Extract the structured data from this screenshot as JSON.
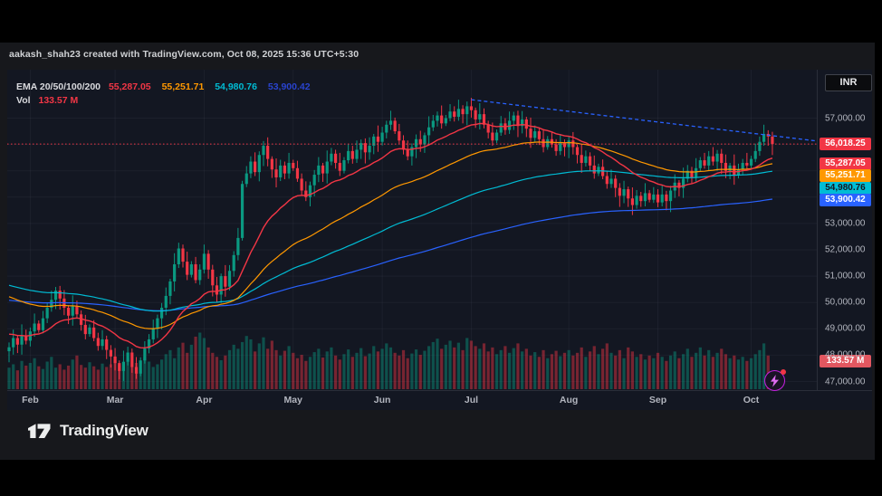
{
  "attribution": {
    "text": "aakash_shah23 created with TradingView.com, Oct 08, 2025 15:36 UTC+5:30"
  },
  "toolbar": {
    "currency_label": "INR"
  },
  "legend": {
    "indicator_label": "EMA 20/50/100/200",
    "ema_values": [
      {
        "name": "ema20",
        "value": "55,287.05",
        "color": "#f23645"
      },
      {
        "name": "ema50",
        "value": "55,251.71",
        "color": "#ff9800"
      },
      {
        "name": "ema100",
        "value": "54,980.76",
        "color": "#00bcd4"
      },
      {
        "name": "ema200",
        "value": "53,900.42",
        "color": "#2943ce"
      }
    ],
    "vol_label": "Vol",
    "vol_value": "133.57 M",
    "vol_color": "#f23645"
  },
  "price_scale": {
    "ticks": [
      {
        "label": "57,000.00",
        "price": 57000
      },
      {
        "label": "53,000.00",
        "price": 53000
      },
      {
        "label": "52,000.00",
        "price": 52000
      },
      {
        "label": "51,000.00",
        "price": 51000
      },
      {
        "label": "50,000.00",
        "price": 50000
      },
      {
        "label": "49,000.00",
        "price": 49000
      },
      {
        "label": "48,000.00",
        "price": 48000
      },
      {
        "label": "47,000.00",
        "price": 47000
      }
    ],
    "price_badge": {
      "label": "56,018.25",
      "color": "#f23645"
    },
    "ema_badges": [
      {
        "label": "55,287.05",
        "color": "#f23645",
        "text": "#ffffff"
      },
      {
        "label": "55,251.71",
        "color": "#ff9800",
        "text": "#ffffff"
      },
      {
        "label": "54,980.76",
        "color": "#00bcd4",
        "text": "#131722"
      },
      {
        "label": "53,900.42",
        "color": "#2962ff",
        "text": "#ffffff"
      }
    ],
    "volume_badge": {
      "label": "133.57 M",
      "color": "#e25760"
    }
  },
  "footer": {
    "brand": "TradingView"
  },
  "chart_data": {
    "type": "candlestick+volume",
    "symbol_currency": "INR",
    "y_range": [
      46900,
      57800
    ],
    "y_grid_step": 1000,
    "price_line": 56018.25,
    "last_close": 56018.25,
    "last_volume_m": 133.57,
    "months": [
      {
        "label": "Feb",
        "index": 5
      },
      {
        "label": "Mar",
        "index": 25
      },
      {
        "label": "Apr",
        "index": 46
      },
      {
        "label": "May",
        "index": 67
      },
      {
        "label": "Jun",
        "index": 88
      },
      {
        "label": "Jul",
        "index": 109
      },
      {
        "label": "Aug",
        "index": 132
      },
      {
        "label": "Sep",
        "index": 153
      },
      {
        "label": "Oct",
        "index": 175
      }
    ],
    "closes_k": [
      48.3,
      48.65,
      48.4,
      48.75,
      48.55,
      48.9,
      49.2,
      48.95,
      49.4,
      49.8,
      50.1,
      50.45,
      50.15,
      49.8,
      49.5,
      49.85,
      49.55,
      49.15,
      48.8,
      49.05,
      48.65,
      48.35,
      48.6,
      48.2,
      47.95,
      47.7,
      47.4,
      47.75,
      48.1,
      47.55,
      47.3,
      47.8,
      48.25,
      48.6,
      49.0,
      49.4,
      49.8,
      50.25,
      50.8,
      51.45,
      52.05,
      51.55,
      51.05,
      51.45,
      50.85,
      51.25,
      51.85,
      51.25,
      50.65,
      50.3,
      51.0,
      50.6,
      51.2,
      51.8,
      52.45,
      54.5,
      54.9,
      55.35,
      54.95,
      55.6,
      55.95,
      55.45,
      55.05,
      54.75,
      55.2,
      54.9,
      55.3,
      55.1,
      54.7,
      54.25,
      54.0,
      54.45,
      54.85,
      55.2,
      54.9,
      55.35,
      55.65,
      55.3,
      55.0,
      55.4,
      55.75,
      55.45,
      55.8,
      56.05,
      55.7,
      55.95,
      56.3,
      56.1,
      56.45,
      56.75,
      56.9,
      56.5,
      56.15,
      55.8,
      55.55,
      55.9,
      56.2,
      56.0,
      56.35,
      56.65,
      56.9,
      57.1,
      56.8,
      57.0,
      57.25,
      57.05,
      57.35,
      57.15,
      57.45,
      57.3,
      56.95,
      57.15,
      56.75,
      56.45,
      56.15,
      56.45,
      56.8,
      56.55,
      56.9,
      57.1,
      56.7,
      56.95,
      56.6,
      56.25,
      56.5,
      56.2,
      55.9,
      56.2,
      56.0,
      55.75,
      56.05,
      55.9,
      56.15,
      55.9,
      55.6,
      55.3,
      55.55,
      55.2,
      54.9,
      55.15,
      54.8,
      54.5,
      54.7,
      54.35,
      54.05,
      54.3,
      53.95,
      53.7,
      54.05,
      53.85,
      54.15,
      53.9,
      54.1,
      53.8,
      54.1,
      53.85,
      54.25,
      54.55,
      54.35,
      54.7,
      55.0,
      54.75,
      55.1,
      55.4,
      55.2,
      55.55,
      55.35,
      55.65,
      55.3,
      55.0,
      55.2,
      54.85,
      55.05,
      55.3,
      55.2,
      55.45,
      55.75,
      56.1,
      56.4,
      56.3,
      56.018
    ],
    "volumes_m": [
      160,
      185,
      140,
      210,
      175,
      195,
      230,
      170,
      150,
      205,
      240,
      160,
      185,
      145,
      175,
      220,
      250,
      180,
      160,
      200,
      170,
      145,
      190,
      165,
      185,
      210,
      180,
      155,
      230,
      170,
      195,
      150,
      240,
      205,
      165,
      185,
      220,
      260,
      290,
      230,
      310,
      345,
      270,
      330,
      390,
      420,
      380,
      310,
      270,
      240,
      215,
      250,
      290,
      330,
      300,
      350,
      395,
      370,
      280,
      340,
      385,
      300,
      360,
      290,
      250,
      285,
      320,
      270,
      230,
      255,
      210,
      240,
      275,
      300,
      235,
      280,
      310,
      250,
      220,
      260,
      295,
      240,
      270,
      305,
      245,
      265,
      320,
      280,
      300,
      340,
      310,
      270,
      250,
      290,
      230,
      265,
      295,
      255,
      285,
      320,
      350,
      375,
      300,
      330,
      360,
      310,
      345,
      290,
      380,
      360,
      320,
      300,
      340,
      280,
      310,
      260,
      290,
      320,
      270,
      305,
      340,
      280,
      300,
      250,
      275,
      240,
      290,
      230,
      260,
      285,
      245,
      270,
      290,
      250,
      270,
      310,
      240,
      280,
      320,
      260,
      300,
      340,
      270,
      250,
      290,
      230,
      310,
      280,
      240,
      260,
      220,
      250,
      230,
      270,
      240,
      210,
      250,
      280,
      230,
      260,
      300,
      240,
      270,
      310,
      250,
      290,
      240,
      270,
      300,
      260,
      230,
      250,
      220,
      240,
      210,
      230,
      260,
      290,
      340,
      250,
      133.57
    ],
    "wick_pattern_k": [
      0.18,
      0.32,
      0.1,
      0.42,
      0.22,
      0.15,
      0.38,
      0.12,
      0.28,
      0.2,
      0.35,
      0.14
    ],
    "emas": {
      "periods": [
        200,
        100,
        50,
        20
      ],
      "colors": {
        "20": "#f23645",
        "50": "#ff9800",
        "100": "#00bcd4",
        "200": "#2962ff"
      },
      "seeds_k": {
        "20": 48.85,
        "50": 50.3,
        "100": 50.7,
        "200": 50.1
      },
      "last_values": {
        "20": 55287.05,
        "50": 55251.71,
        "100": 54980.76,
        "200": 53900.42
      }
    },
    "trendline": {
      "x1_index": 109,
      "price1": 57700,
      "x2_index": 190,
      "price2": 56140,
      "color": "#2962ff",
      "dashed": true
    },
    "colors": {
      "up": "#0a9981",
      "down": "#f23645",
      "vol_up": "rgba(8,153,129,0.45)",
      "vol_down": "rgba(242,54,69,0.45)",
      "grid": "rgba(134,142,160,0.08)",
      "background": "#131722"
    }
  }
}
